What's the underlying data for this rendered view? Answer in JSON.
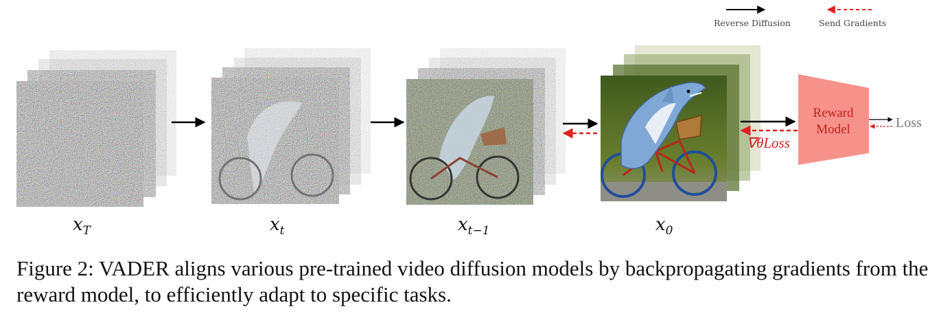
{
  "legend": {
    "reverse_label": "Reverse Diffusion",
    "send_label": "Send Gradients",
    "reverse_color": "#000000",
    "send_color": "#e02020"
  },
  "stages": [
    {
      "name": "x",
      "sub": "T"
    },
    {
      "name": "x",
      "sub": "t"
    },
    {
      "name": "x",
      "sub": "t−1"
    },
    {
      "name": "x",
      "sub": "0"
    }
  ],
  "reward_model": {
    "line1": "Reward",
    "line2": "Model",
    "fill": "#f7928b"
  },
  "loss_label": "Loss",
  "gradient_label": "∇θLoss",
  "caption": "Figure 2: VADER aligns various pre-trained video diffusion models by backpropagating gradients from the reward model, to efficiently adapt to specific tasks."
}
